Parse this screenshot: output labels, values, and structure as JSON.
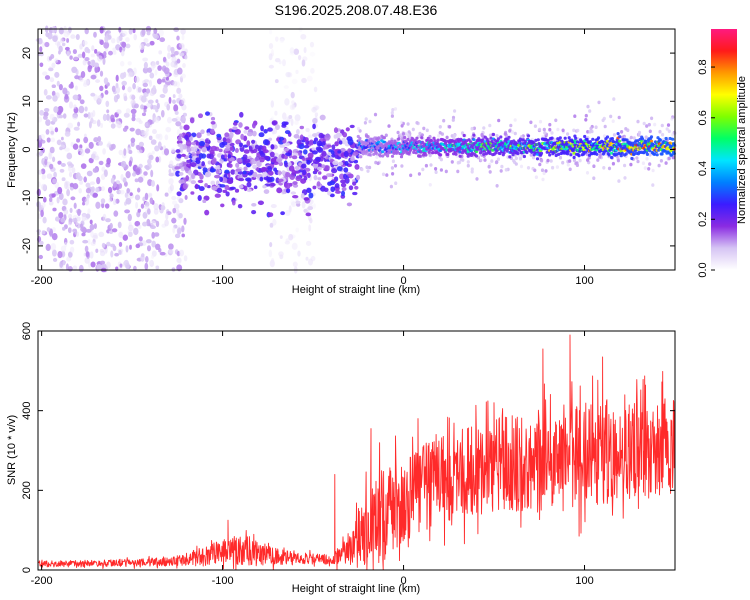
{
  "chart_data": [
    {
      "type": "heatmap",
      "title": "S196.2025.208.07.48.E36",
      "xlabel": "Height of straight line (km)",
      "ylabel": "Frequency (Hz)",
      "xlim": [
        -202,
        150
      ],
      "ylim": [
        -25,
        25
      ],
      "x_ticks": [
        -200,
        -100,
        0,
        100
      ],
      "y_ticks": [
        -20,
        -10,
        0,
        10,
        20
      ],
      "colorbar": {
        "label": "Normalized spectral amplitude",
        "range": [
          0,
          0.95
        ],
        "ticks": [
          0.0,
          0.2,
          0.4,
          0.6,
          0.8
        ],
        "colormap": [
          "#ffffff",
          "#d6c4f4",
          "#8a2be2",
          "#3b1cff",
          "#0080ff",
          "#00e5ff",
          "#00ff66",
          "#7fff00",
          "#ffff00",
          "#ff9900",
          "#ff1a1a",
          "#ff1a80"
        ]
      },
      "regions": [
        {
          "name": "diffuse-noise",
          "x_range": [
            -202,
            -120
          ],
          "f_range": [
            -25,
            25
          ],
          "amplitude": 0.08
        },
        {
          "name": "sparse-noise",
          "x_range": [
            -75,
            -48
          ],
          "f_range": [
            -25,
            25
          ],
          "amplitude": 0.04
        },
        {
          "name": "onset-band",
          "x_range": [
            -125,
            -25
          ],
          "f_center": -2,
          "f_width": 8,
          "amplitude": 0.15
        },
        {
          "name": "carrier-line",
          "x_range": [
            -25,
            150
          ],
          "f_center": 0.5,
          "f_width": 2.5,
          "amplitude_start": 0.35,
          "amplitude_end": 0.9
        }
      ]
    },
    {
      "type": "line",
      "title": "",
      "xlabel": "Height of straight line (km)",
      "ylabel": "SNR (10 * v/v)",
      "xlim": [
        -202,
        150
      ],
      "ylim": [
        0,
        600
      ],
      "x_ticks": [
        -200,
        -100,
        0,
        100
      ],
      "y_ticks": [
        0,
        200,
        400,
        600
      ],
      "line_color": "#ff2a2a",
      "envelope": {
        "x": [
          -202,
          -150,
          -125,
          -110,
          -100,
          -90,
          -80,
          -60,
          -40,
          -30,
          -20,
          -10,
          0,
          20,
          50,
          100,
          150
        ],
        "mean": [
          15,
          18,
          22,
          35,
          45,
          50,
          40,
          30,
          25,
          50,
          110,
          150,
          180,
          230,
          260,
          290,
          310
        ],
        "spread": [
          8,
          9,
          12,
          25,
          35,
          40,
          30,
          15,
          12,
          40,
          110,
          120,
          110,
          110,
          120,
          140,
          120
        ]
      },
      "peaks": [
        {
          "x": -97,
          "y": 125
        },
        {
          "x": -38,
          "y": 240
        },
        {
          "x": -18,
          "y": 355
        },
        {
          "x": 8,
          "y": 380
        },
        {
          "x": 50,
          "y": 420
        },
        {
          "x": 77,
          "y": 555
        },
        {
          "x": 92,
          "y": 590
        },
        {
          "x": 110,
          "y": 535
        }
      ]
    }
  ]
}
